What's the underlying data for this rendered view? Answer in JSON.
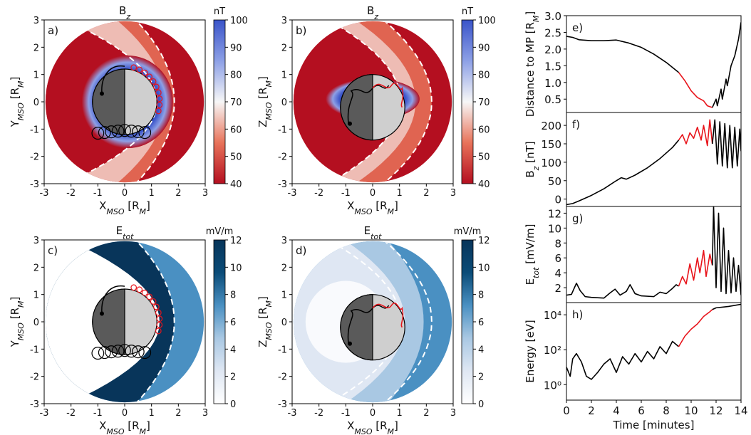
{
  "chart_data": [
    {
      "type": "heatmap",
      "panel": "a)",
      "title": [
        "B",
        "z"
      ],
      "xlabel": [
        "X",
        "MSO",
        " [R",
        "M",
        "]"
      ],
      "ylabel": [
        "Y",
        "MSO",
        " [R",
        "M",
        "]"
      ],
      "xlim": [
        -3,
        3
      ],
      "ylim": [
        -3,
        3
      ],
      "xticks": [
        -3,
        -2,
        -1,
        0,
        1,
        2,
        3
      ],
      "yticks": [
        -3,
        -2,
        -1,
        0,
        1,
        2,
        3
      ],
      "colorbar": {
        "label": "nT",
        "lim": [
          40,
          100
        ],
        "ticks": [
          40,
          50,
          60,
          70,
          80,
          90,
          100
        ],
        "colors": [
          "#b40f20",
          "#e8735a",
          "#f7f7f7",
          "#8da0e6",
          "#3a54c9"
        ]
      }
    },
    {
      "type": "heatmap",
      "panel": "b)",
      "title": [
        "B",
        "z"
      ],
      "xlabel": [
        "X",
        "MSO",
        " [R",
        "M",
        "]"
      ],
      "ylabel": [
        "Z",
        "MSO",
        " [R",
        "M",
        "]"
      ],
      "xlim": [
        -3,
        3
      ],
      "ylim": [
        -3,
        3
      ],
      "xticks": [
        -3,
        -2,
        -1,
        0,
        1,
        2,
        3
      ],
      "yticks": [
        -3,
        -2,
        -1,
        0,
        1,
        2,
        3
      ],
      "colorbar": {
        "label": "nT",
        "lim": [
          40,
          100
        ],
        "ticks": [
          40,
          50,
          60,
          70,
          80,
          90,
          100
        ],
        "colors": [
          "#b40f20",
          "#e8735a",
          "#f7f7f7",
          "#8da0e6",
          "#3a54c9"
        ]
      }
    },
    {
      "type": "heatmap",
      "panel": "c)",
      "title": [
        "E",
        "tot"
      ],
      "xlabel": [
        "X",
        "MSO",
        " [R",
        "M",
        "]"
      ],
      "ylabel": [
        "Y",
        "MSO",
        " [R",
        "M",
        "]"
      ],
      "xlim": [
        -3,
        3
      ],
      "ylim": [
        -3,
        3
      ],
      "xticks": [
        -3,
        -2,
        -1,
        0,
        1,
        2,
        3
      ],
      "yticks": [
        -3,
        -2,
        -1,
        0,
        1,
        2,
        3
      ],
      "colorbar": {
        "label": "mV/m",
        "lim": [
          0,
          12
        ],
        "ticks": [
          0,
          2,
          4,
          6,
          8,
          10,
          12
        ],
        "colors": [
          "#ffffff",
          "#dfe7f3",
          "#a9c8e3",
          "#4a90c2",
          "#0b4c78",
          "#08355a"
        ]
      }
    },
    {
      "type": "heatmap",
      "panel": "d)",
      "title": [
        "E",
        "tot"
      ],
      "xlabel": [
        "X",
        "MSO",
        " [R",
        "M",
        "]"
      ],
      "ylabel": [
        "Z",
        "MSO",
        " [R",
        "M",
        "]"
      ],
      "xlim": [
        -3,
        3
      ],
      "ylim": [
        -3,
        3
      ],
      "xticks": [
        -3,
        -2,
        -1,
        0,
        1,
        2,
        3
      ],
      "yticks": [
        -3,
        -2,
        -1,
        0,
        1,
        2,
        3
      ],
      "colorbar": {
        "label": "mV/m",
        "lim": [
          0,
          12
        ],
        "ticks": [
          0,
          2,
          4,
          6,
          8,
          10,
          12
        ],
        "colors": [
          "#ffffff",
          "#dfe7f3",
          "#a9c8e3",
          "#4a90c2",
          "#0b4c78",
          "#08355a"
        ]
      }
    },
    {
      "type": "line",
      "panel": "e)",
      "ylabel": [
        "Distance to MP [R",
        "M",
        "]"
      ],
      "xlim": [
        0,
        14
      ],
      "ylim": [
        0.1,
        3.0
      ],
      "yticks": [
        0.5,
        {
          "value": 1.0,
          "label": "1.0"
        },
        1.5,
        {
          "value": 2.0,
          "label": "2.0"
        },
        2.5,
        {
          "value": 3.0,
          "label": "3.0"
        }
      ],
      "series": [
        {
          "color": "#000000",
          "x": [
            0,
            0.5,
            1,
            2,
            3,
            4,
            5,
            6,
            7,
            8,
            9
          ],
          "values": [
            2.38,
            2.35,
            2.28,
            2.25,
            2.25,
            2.27,
            2.18,
            2.05,
            1.85,
            1.6,
            1.3
          ]
        },
        {
          "color": "#e8141b",
          "x": [
            9,
            9.5,
            10,
            10.5,
            11,
            11.3,
            11.7
          ],
          "values": [
            1.3,
            1.05,
            0.75,
            0.55,
            0.45,
            0.3,
            0.25
          ]
        },
        {
          "color": "#000000",
          "x": [
            11.7,
            12,
            12.1,
            12.4,
            12.5,
            12.8,
            12.9,
            13.2,
            13.5,
            13.8,
            14
          ],
          "values": [
            0.25,
            0.5,
            0.3,
            0.8,
            0.5,
            1.1,
            0.9,
            1.5,
            1.8,
            2.3,
            2.8
          ]
        }
      ]
    },
    {
      "type": "line",
      "panel": "f)",
      "ylabel": [
        "B",
        "z",
        " [nT]"
      ],
      "xlim": [
        0,
        14
      ],
      "ylim": [
        -20,
        235
      ],
      "yticks": [
        0,
        50,
        100,
        150,
        200
      ],
      "series": [
        {
          "color": "#000000",
          "x": [
            0,
            0.5,
            1,
            2,
            3,
            4,
            4.4,
            4.8,
            5.5,
            6.5,
            7.5,
            8.5,
            9
          ],
          "values": [
            -15,
            -12,
            -5,
            10,
            28,
            50,
            58,
            54,
            65,
            85,
            110,
            140,
            160
          ]
        },
        {
          "color": "#e8141b",
          "x": [
            9,
            9.3,
            9.6,
            9.9,
            10.2,
            10.5,
            10.8,
            11,
            11.3,
            11.5,
            11.7
          ],
          "values": [
            160,
            175,
            150,
            180,
            165,
            195,
            160,
            200,
            145,
            215,
            150
          ]
        },
        {
          "color": "#000000",
          "x": [
            11.7,
            11.9,
            12.1,
            12.3,
            12.5,
            12.7,
            12.9,
            13.1,
            13.3,
            13.5,
            13.7,
            13.9,
            14
          ],
          "values": [
            150,
            215,
            95,
            210,
            90,
            205,
            85,
            200,
            85,
            195,
            90,
            190,
            130
          ]
        }
      ]
    },
    {
      "type": "line",
      "panel": "g)",
      "ylabel": [
        "E",
        "tot",
        " [mV/m]"
      ],
      "xlim": [
        0,
        14
      ],
      "ylim": [
        0,
        12.9
      ],
      "yticks": [
        2,
        4,
        6,
        8,
        10,
        12
      ],
      "series": [
        {
          "color": "#000000",
          "x": [
            0,
            0.4,
            0.8,
            1.1,
            1.5,
            2,
            3,
            3.5,
            3.9,
            4.3,
            4.8,
            5.1,
            5.5,
            6,
            7,
            7.5,
            8,
            8.5,
            8.8,
            9
          ],
          "values": [
            1,
            1.1,
            2.6,
            1.6,
            0.8,
            0.7,
            0.6,
            1.3,
            1.8,
            1.0,
            1.5,
            2.4,
            1.2,
            0.9,
            0.8,
            1.4,
            1.2,
            1.9,
            2.4,
            2.2
          ]
        },
        {
          "color": "#e8141b",
          "x": [
            9,
            9.3,
            9.6,
            9.9,
            10.2,
            10.5,
            10.7,
            11,
            11.2,
            11.5,
            11.7
          ],
          "values": [
            2.2,
            3.5,
            2.5,
            5.2,
            3,
            6,
            4,
            7,
            3.5,
            6.5,
            5
          ]
        },
        {
          "color": "#000000",
          "x": [
            11.7,
            11.8,
            12,
            12.2,
            12.4,
            12.6,
            12.8,
            13,
            13.2,
            13.4,
            13.6,
            13.8,
            14
          ],
          "values": [
            5,
            12.9,
            2,
            12,
            1.5,
            10,
            1.2,
            7,
            1.3,
            6,
            1.5,
            5,
            1
          ]
        }
      ]
    },
    {
      "type": "line",
      "panel": "h)",
      "ylabel": [
        "Energy [eV]"
      ],
      "xlabel": "Time [minutes]",
      "log": true,
      "xlim": [
        0,
        14
      ],
      "ylim": [
        0.13,
        50000
      ],
      "xticks": [
        0,
        2,
        4,
        6,
        8,
        10,
        12,
        14
      ],
      "yticks": [
        {
          "value": 1,
          "label": "10⁰"
        },
        {
          "value": 100,
          "label": "10²"
        },
        {
          "value": 10000,
          "label": "10⁴"
        }
      ],
      "series": [
        {
          "color": "#000000",
          "x": [
            0,
            0.3,
            0.5,
            0.8,
            1.2,
            1.6,
            2,
            2.5,
            3,
            3.5,
            4,
            4.5,
            5,
            5.5,
            6,
            6.5,
            7,
            7.5,
            8,
            8.5,
            9
          ],
          "values": [
            10,
            3,
            30,
            60,
            20,
            3,
            2,
            5,
            15,
            30,
            5,
            40,
            15,
            60,
            20,
            80,
            30,
            150,
            60,
            300,
            150
          ]
        },
        {
          "color": "#e8141b",
          "x": [
            9,
            9.5,
            10,
            10.5,
            11,
            11.5,
            11.7
          ],
          "values": [
            150,
            600,
            1500,
            3000,
            8000,
            15000,
            20000
          ]
        },
        {
          "color": "#000000",
          "x": [
            11.7,
            12,
            13,
            14
          ],
          "values": [
            20000,
            25000,
            30000,
            40000
          ]
        }
      ]
    }
  ]
}
